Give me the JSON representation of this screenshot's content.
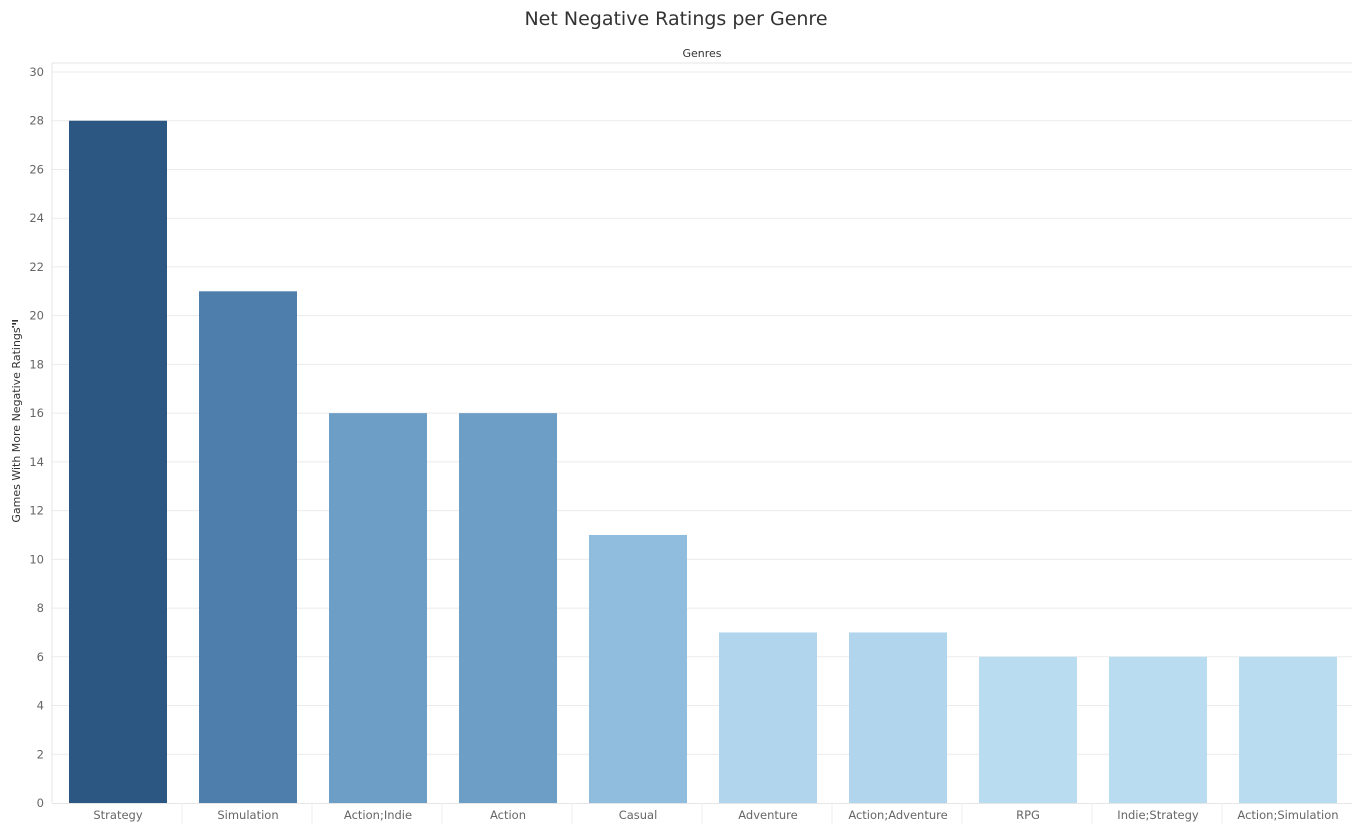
{
  "chart_data": {
    "type": "bar",
    "title": "Net Negative Ratings per Genre",
    "column_header": "Genres",
    "xlabel": "",
    "ylabel": "Games With More Negative Ratings",
    "ylim": [
      0,
      30
    ],
    "yticks": [
      0,
      2,
      4,
      6,
      8,
      10,
      12,
      14,
      16,
      18,
      20,
      22,
      24,
      26,
      28,
      30
    ],
    "categories": [
      "Strategy",
      "Simulation",
      "Action;Indie",
      "Action",
      "Casual",
      "Adventure",
      "Action;Adventure",
      "RPG",
      "Indie;Strategy",
      "Action;Simulation"
    ],
    "values": [
      28,
      21,
      16,
      16,
      11,
      7,
      7,
      6,
      6,
      6
    ],
    "colors": [
      "#2c5782",
      "#4d7eac",
      "#6d9ec6",
      "#6d9ec6",
      "#90bcde",
      "#b0d5ec",
      "#b0d5ec",
      "#b9dcf0",
      "#b9dcf0",
      "#b9dcf0"
    ],
    "grid": true,
    "sort_icon": "sort-descending-icon"
  }
}
